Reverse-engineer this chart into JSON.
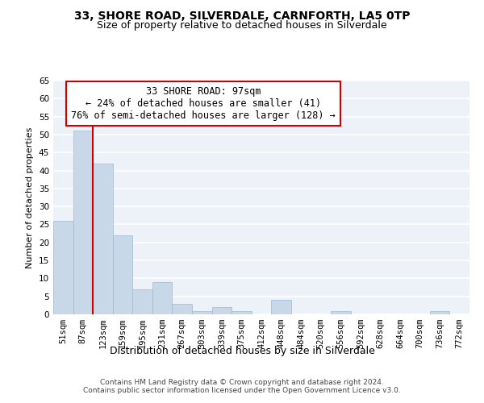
{
  "title_line1": "33, SHORE ROAD, SILVERDALE, CARNFORTH, LA5 0TP",
  "title_line2": "Size of property relative to detached houses in Silverdale",
  "xlabel": "Distribution of detached houses by size in Silverdale",
  "ylabel": "Number of detached properties",
  "categories": [
    "51sqm",
    "87sqm",
    "123sqm",
    "159sqm",
    "195sqm",
    "231sqm",
    "267sqm",
    "303sqm",
    "339sqm",
    "375sqm",
    "412sqm",
    "448sqm",
    "484sqm",
    "520sqm",
    "556sqm",
    "592sqm",
    "628sqm",
    "664sqm",
    "700sqm",
    "736sqm",
    "772sqm"
  ],
  "values": [
    26,
    51,
    42,
    22,
    7,
    9,
    3,
    1,
    2,
    1,
    0,
    4,
    0,
    0,
    1,
    0,
    0,
    0,
    0,
    1,
    0
  ],
  "bar_color": "#c8d8e8",
  "bar_edgecolor": "#a0b8d0",
  "vline_x_index": 1.5,
  "vline_color": "#cc0000",
  "annotation_text": "33 SHORE ROAD: 97sqm\n← 24% of detached houses are smaller (41)\n76% of semi-detached houses are larger (128) →",
  "annotation_box_color": "#ffffff",
  "annotation_box_edgecolor": "#cc0000",
  "annotation_fontsize": 8.5,
  "ylim": [
    0,
    65
  ],
  "yticks": [
    0,
    5,
    10,
    15,
    20,
    25,
    30,
    35,
    40,
    45,
    50,
    55,
    60,
    65
  ],
  "bg_color": "#edf2f9",
  "grid_color": "#ffffff",
  "title1_fontsize": 10,
  "title2_fontsize": 9,
  "xlabel_fontsize": 9,
  "ylabel_fontsize": 8,
  "tick_fontsize": 7.5,
  "footer_line1": "Contains HM Land Registry data © Crown copyright and database right 2024.",
  "footer_line2": "Contains public sector information licensed under the Open Government Licence v3.0.",
  "footer_fontsize": 6.5
}
